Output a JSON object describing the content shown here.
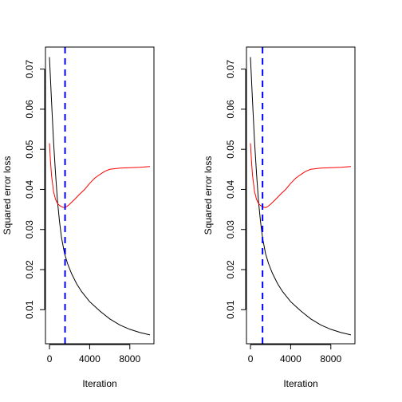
{
  "chart_data": [
    {
      "type": "line",
      "title": "",
      "xlabel": "Iteration",
      "ylabel": "Squared error loss",
      "xlim": [
        -400,
        10400
      ],
      "ylim": [
        0.0015,
        0.0755
      ],
      "xticks": [
        0,
        4000,
        8000
      ],
      "xtick_labels": [
        "0",
        "4000",
        "8000"
      ],
      "yticks": [
        0.01,
        0.02,
        0.03,
        0.04,
        0.05,
        0.06,
        0.07
      ],
      "ytick_labels": [
        "0.01",
        "0.02",
        "0.03",
        "0.04",
        "0.05",
        "0.06",
        "0.07"
      ],
      "grid": false,
      "legend": "none",
      "vline": {
        "x": 1550,
        "color": "#0000ff",
        "style": "dashed"
      },
      "series": [
        {
          "color": "#000000",
          "x": [
            0,
            200,
            400,
            600,
            800,
            1000,
            1200,
            1500,
            1800,
            2200,
            2700,
            3200,
            4000,
            5000,
            6000,
            7000,
            8000,
            9000,
            10000
          ],
          "y": [
            0.073,
            0.062,
            0.052,
            0.044,
            0.037,
            0.032,
            0.028,
            0.024,
            0.0215,
            0.019,
            0.0165,
            0.0145,
            0.012,
            0.0097,
            0.0077,
            0.0062,
            0.0051,
            0.0043,
            0.0037
          ]
        },
        {
          "color": "#ff0000",
          "x": [
            0,
            100,
            200,
            400,
            600,
            800,
            1000,
            1200,
            1400,
            1550,
            1700,
            2000,
            2500,
            3000,
            3500,
            4000,
            4500,
            5000,
            5500,
            6000,
            7000,
            8000,
            9000,
            10000
          ],
          "y": [
            0.0515,
            0.047,
            0.0435,
            0.0395,
            0.0375,
            0.0365,
            0.036,
            0.0357,
            0.0355,
            0.0355,
            0.0357,
            0.0363,
            0.0375,
            0.0388,
            0.04,
            0.0415,
            0.0428,
            0.0437,
            0.0445,
            0.045,
            0.0453,
            0.0454,
            0.0455,
            0.0457
          ]
        }
      ]
    },
    {
      "type": "line",
      "title": "",
      "xlabel": "Iteration",
      "ylabel": "Squared error loss",
      "xlim": [
        -400,
        10400
      ],
      "ylim": [
        0.0015,
        0.0755
      ],
      "xticks": [
        0,
        4000,
        8000
      ],
      "xtick_labels": [
        "0",
        "4000",
        "8000"
      ],
      "yticks": [
        0.01,
        0.02,
        0.03,
        0.04,
        0.05,
        0.06,
        0.07
      ],
      "ytick_labels": [
        "0.01",
        "0.02",
        "0.03",
        "0.04",
        "0.05",
        "0.06",
        "0.07"
      ],
      "grid": false,
      "legend": "none",
      "vline": {
        "x": 1200,
        "color": "#0000ff",
        "style": "dashed"
      },
      "series": [
        {
          "color": "#000000",
          "x": [
            0,
            200,
            400,
            600,
            800,
            1000,
            1200,
            1500,
            1800,
            2200,
            2700,
            3200,
            4000,
            5000,
            6000,
            7000,
            8000,
            9000,
            10000
          ],
          "y": [
            0.073,
            0.062,
            0.052,
            0.044,
            0.037,
            0.032,
            0.028,
            0.024,
            0.0215,
            0.019,
            0.0165,
            0.0145,
            0.012,
            0.0097,
            0.0077,
            0.0062,
            0.0051,
            0.0043,
            0.0037
          ]
        },
        {
          "color": "#ff0000",
          "x": [
            0,
            100,
            200,
            400,
            600,
            800,
            1000,
            1200,
            1400,
            1550,
            1700,
            2000,
            2500,
            3000,
            3500,
            4000,
            4500,
            5000,
            5500,
            6000,
            7000,
            8000,
            9000,
            10000
          ],
          "y": [
            0.0515,
            0.047,
            0.0435,
            0.0395,
            0.0375,
            0.0365,
            0.036,
            0.0357,
            0.0355,
            0.0355,
            0.0357,
            0.0363,
            0.0375,
            0.0388,
            0.04,
            0.0415,
            0.0428,
            0.0437,
            0.0445,
            0.045,
            0.0453,
            0.0454,
            0.0455,
            0.0457
          ]
        }
      ]
    }
  ]
}
